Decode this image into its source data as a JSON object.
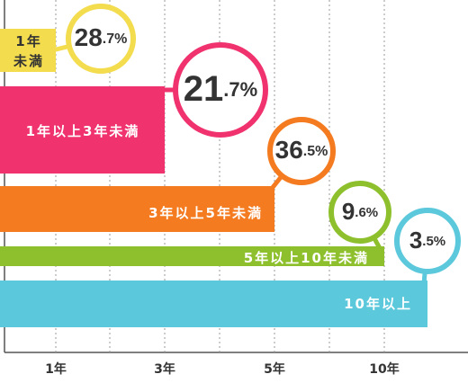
{
  "chart_data": {
    "type": "bar",
    "categories": [
      "1年\n未満",
      "1年以上3年未満",
      "3年以上5年未満",
      "5年以上10年未満",
      "10年以上"
    ],
    "values": [
      28.7,
      21.7,
      36.5,
      9.6,
      3.5
    ],
    "value_labels": [
      "28.7%",
      "21.7%",
      "36.5%",
      "9.6%",
      "3.5%"
    ],
    "colors": [
      "#f3dc4d",
      "#f0326f",
      "#f47b20",
      "#8dc02c",
      "#5bc8dc"
    ],
    "x_tick_labels": [
      "1年",
      "3年",
      "5年",
      "10年"
    ],
    "grid": true
  }
}
